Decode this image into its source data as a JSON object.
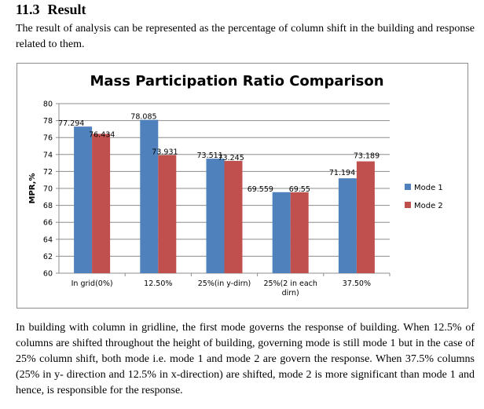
{
  "section": {
    "number": "11.3",
    "title": "Result"
  },
  "intro_text": "The result of analysis can be represented as the percentage of column shift in the building and response related to them.",
  "conclusion_text": "In building with column in gridline, the first mode governs the response of building. When 12.5% of columns are shifted throughout the height of building, governing mode is still mode 1 but in the case of 25% column shift, both mode i.e. mode 1 and mode 2 are govern the response. When 37.5% columns (25% in y- direction and 12.5% in x-direction) are shifted, mode 2 is more significant than mode 1 and hence, is responsible for the response.",
  "chart_data": {
    "type": "bar",
    "title": "Mass Participation Ratio Comparison",
    "xlabel": "",
    "ylabel": "MPR,%",
    "ylim": [
      60,
      80
    ],
    "yticks": [
      "60",
      "62",
      "64",
      "66",
      "68",
      "70",
      "72",
      "74",
      "76",
      "78",
      "80"
    ],
    "grid": true,
    "legend_position": "right",
    "categories": [
      [
        "In grid(0%)"
      ],
      [
        "12.50%"
      ],
      [
        "25%(in y-dirn)"
      ],
      [
        "25%(2 in each",
        "dirn)"
      ],
      [
        "37.50%"
      ]
    ],
    "series": [
      {
        "name": "Mode 1",
        "color": "#4f81bd",
        "values": [
          77.294,
          78.085,
          73.511,
          69.559,
          71.194
        ],
        "labels": [
          "77.294",
          "78.085",
          "73.511",
          "69.559",
          "71.194"
        ]
      },
      {
        "name": "Mode 2",
        "color": "#c0504d",
        "values": [
          76.434,
          73.931,
          73.245,
          69.55,
          73.189
        ],
        "labels": [
          "76.434",
          "73.931",
          "73.245",
          "69.55",
          "73.189"
        ]
      }
    ]
  }
}
